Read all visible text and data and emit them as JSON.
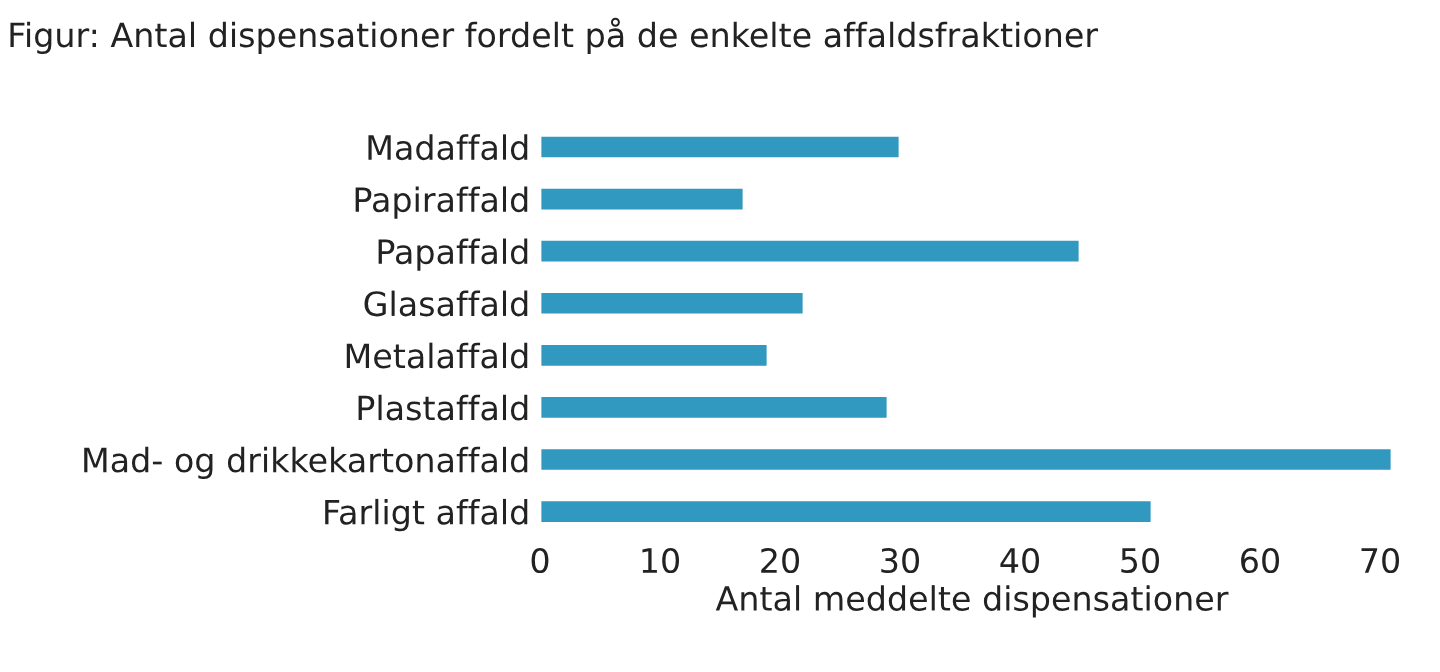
{
  "chart_data": {
    "type": "bar",
    "orientation": "horizontal",
    "title": "Figur: Antal dispensationer fordelt på de enkelte affaldsfraktioner",
    "xlabel": "Antal meddelte dispensationer",
    "categories": [
      "Madaffald",
      "Papiraffald",
      "Papaffald",
      "Glasaffald",
      "Metalaffald",
      "Plastaffald",
      "Mad- og drikkekartonaffald",
      "Farligt affald"
    ],
    "values": [
      30,
      17,
      45,
      22,
      19,
      29,
      71,
      51
    ],
    "color": "#3199bf",
    "xlim": [
      0,
      72
    ],
    "xticks": [
      0,
      10,
      20,
      30,
      40,
      50,
      60,
      70
    ],
    "grid": false,
    "legend": false
  }
}
